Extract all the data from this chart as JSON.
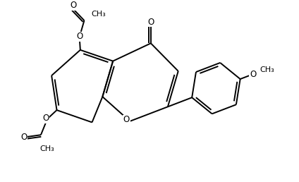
{
  "bg_color": "#ffffff",
  "line_color": "#000000",
  "line_width": 1.4,
  "font_size": 8.5,
  "fig_width": 4.24,
  "fig_height": 2.58,
  "dpi": 100,
  "xlim": [
    0,
    10
  ],
  "ylim": [
    0,
    6
  ]
}
